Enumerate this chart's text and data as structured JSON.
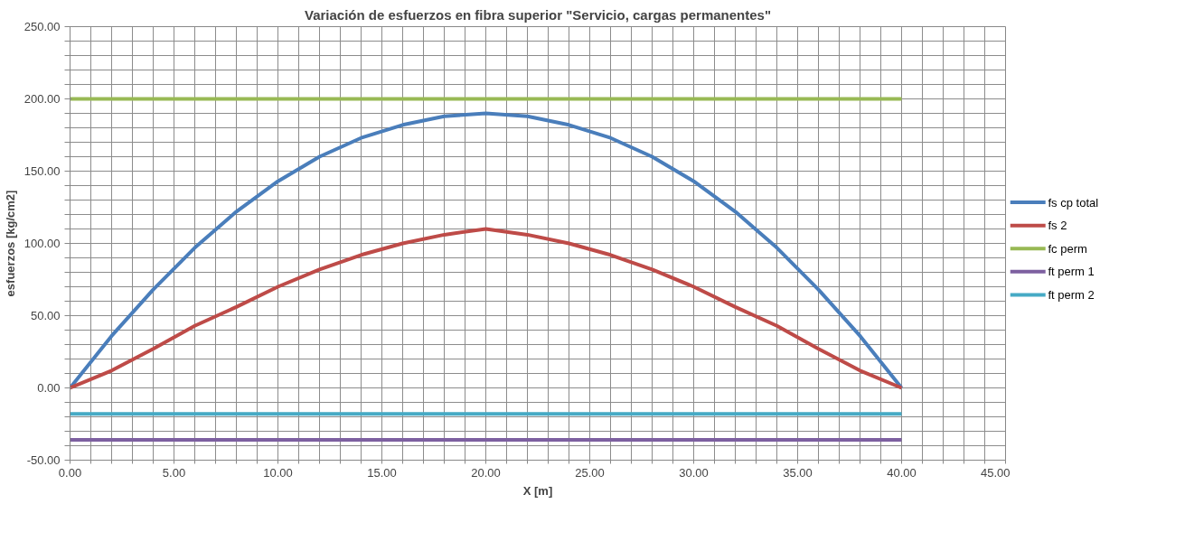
{
  "chart_data": {
    "type": "line",
    "title": "Variación de esfuerzos en fibra superior \"Servicio, cargas permanentes\"",
    "xlabel": "X [m]",
    "ylabel": "esfuerzos [kg/cm2]",
    "x": [
      0,
      2,
      4,
      6,
      8,
      10,
      12,
      14,
      16,
      18,
      20,
      22,
      24,
      26,
      28,
      30,
      32,
      34,
      36,
      38,
      40
    ],
    "series": [
      {
        "name": "fs cp total",
        "color": "#4a7ebb",
        "values": [
          0,
          36,
          68,
          97,
          122,
          143,
          160,
          173,
          182,
          188,
          190,
          188,
          182,
          173,
          160,
          143,
          122,
          97,
          68,
          36,
          0
        ]
      },
      {
        "name": "fs 2",
        "color": "#be4b48",
        "values": [
          0,
          12,
          27,
          43,
          56,
          70,
          82,
          92,
          100,
          106,
          110,
          106,
          100,
          92,
          82,
          70,
          56,
          43,
          27,
          12,
          0
        ]
      },
      {
        "name": "fc perm",
        "color": "#98b954",
        "values": [
          200,
          200,
          200,
          200,
          200,
          200,
          200,
          200,
          200,
          200,
          200,
          200,
          200,
          200,
          200,
          200,
          200,
          200,
          200,
          200,
          200
        ]
      },
      {
        "name": "ft perm 1",
        "color": "#7d60a0",
        "values": [
          -36,
          -36,
          -36,
          -36,
          -36,
          -36,
          -36,
          -36,
          -36,
          -36,
          -36,
          -36,
          -36,
          -36,
          -36,
          -36,
          -36,
          -36,
          -36,
          -36,
          -36
        ]
      },
      {
        "name": "ft perm 2",
        "color": "#46aac5",
        "values": [
          -18,
          -18,
          -18,
          -18,
          -18,
          -18,
          -18,
          -18,
          -18,
          -18,
          -18,
          -18,
          -18,
          -18,
          -18,
          -18,
          -18,
          -18,
          -18,
          -18,
          -18
        ]
      }
    ],
    "xlim": [
      0,
      45
    ],
    "ylim": [
      -50,
      250
    ],
    "xticks": [
      {
        "value": 0,
        "label": "0.00"
      },
      {
        "value": 1,
        "label": null
      },
      {
        "value": 2,
        "label": null
      },
      {
        "value": 3,
        "label": null
      },
      {
        "value": 4,
        "label": null
      },
      {
        "value": 5,
        "label": "5.00"
      },
      {
        "value": 6,
        "label": null
      },
      {
        "value": 7,
        "label": null
      },
      {
        "value": 8,
        "label": null
      },
      {
        "value": 9,
        "label": null
      },
      {
        "value": 10,
        "label": "10.00"
      },
      {
        "value": 11,
        "label": null
      },
      {
        "value": 12,
        "label": null
      },
      {
        "value": 13,
        "label": null
      },
      {
        "value": 14,
        "label": null
      },
      {
        "value": 15,
        "label": "15.00"
      },
      {
        "value": 16,
        "label": null
      },
      {
        "value": 17,
        "label": null
      },
      {
        "value": 18,
        "label": null
      },
      {
        "value": 19,
        "label": null
      },
      {
        "value": 20,
        "label": "20.00"
      },
      {
        "value": 21,
        "label": null
      },
      {
        "value": 22,
        "label": null
      },
      {
        "value": 23,
        "label": null
      },
      {
        "value": 24,
        "label": null
      },
      {
        "value": 25,
        "label": "25.00"
      },
      {
        "value": 26,
        "label": null
      },
      {
        "value": 27,
        "label": null
      },
      {
        "value": 28,
        "label": null
      },
      {
        "value": 29,
        "label": null
      },
      {
        "value": 30,
        "label": "30.00"
      },
      {
        "value": 31,
        "label": null
      },
      {
        "value": 32,
        "label": null
      },
      {
        "value": 33,
        "label": null
      },
      {
        "value": 34,
        "label": null
      },
      {
        "value": 35,
        "label": "35.00"
      },
      {
        "value": 36,
        "label": null
      },
      {
        "value": 37,
        "label": null
      },
      {
        "value": 38,
        "label": null
      },
      {
        "value": 39,
        "label": null
      },
      {
        "value": 40,
        "label": "40.00"
      },
      {
        "value": 41,
        "label": null
      },
      {
        "value": 42,
        "label": null
      },
      {
        "value": 43,
        "label": null
      },
      {
        "value": 44,
        "label": null
      },
      {
        "value": 45,
        "label": "45.00"
      }
    ],
    "yticks": [
      {
        "value": -50,
        "label": "-50.00"
      },
      {
        "value": -40,
        "label": null
      },
      {
        "value": -30,
        "label": null
      },
      {
        "value": -20,
        "label": null
      },
      {
        "value": -10,
        "label": null
      },
      {
        "value": 0,
        "label": "0.00"
      },
      {
        "value": 10,
        "label": null
      },
      {
        "value": 20,
        "label": null
      },
      {
        "value": 30,
        "label": null
      },
      {
        "value": 40,
        "label": null
      },
      {
        "value": 50,
        "label": "50.00"
      },
      {
        "value": 60,
        "label": null
      },
      {
        "value": 70,
        "label": null
      },
      {
        "value": 80,
        "label": null
      },
      {
        "value": 90,
        "label": null
      },
      {
        "value": 100,
        "label": "100.00"
      },
      {
        "value": 110,
        "label": null
      },
      {
        "value": 120,
        "label": null
      },
      {
        "value": 130,
        "label": null
      },
      {
        "value": 140,
        "label": null
      },
      {
        "value": 150,
        "label": "150.00"
      },
      {
        "value": 160,
        "label": null
      },
      {
        "value": 170,
        "label": null
      },
      {
        "value": 180,
        "label": null
      },
      {
        "value": 190,
        "label": null
      },
      {
        "value": 200,
        "label": "200.00"
      },
      {
        "value": 210,
        "label": null
      },
      {
        "value": 220,
        "label": null
      },
      {
        "value": 230,
        "label": null
      },
      {
        "value": 240,
        "label": null
      },
      {
        "value": 250,
        "label": "250.00"
      }
    ],
    "grid": true,
    "legend": "right",
    "marker": "none",
    "line_style": "solid"
  }
}
